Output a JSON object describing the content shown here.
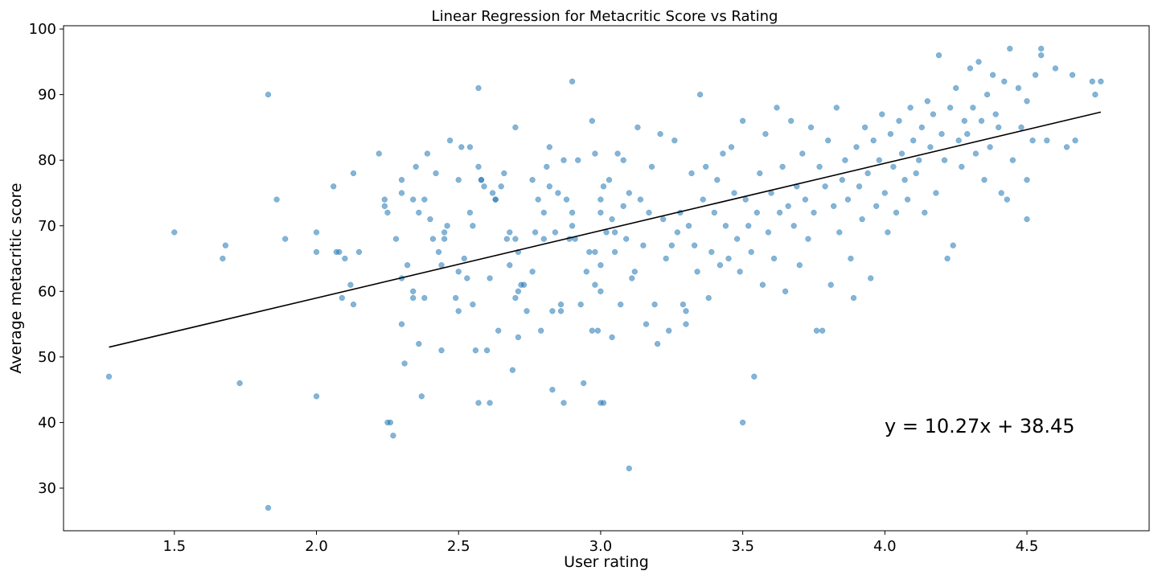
{
  "chart_data": {
    "type": "scatter",
    "title": "Linear Regression for Metacritic Score vs Rating",
    "xlabel": "User rating",
    "ylabel": "Average metacritic score",
    "xlim": [
      1.11,
      4.93
    ],
    "ylim": [
      23.5,
      100.5
    ],
    "xticks": [
      1.5,
      2.0,
      2.5,
      3.0,
      3.5,
      4.0,
      4.5
    ],
    "xtick_labels": [
      "1.5",
      "2.0",
      "2.5",
      "3.0",
      "3.5",
      "4.0",
      "4.5"
    ],
    "yticks": [
      30,
      40,
      50,
      60,
      70,
      80,
      90,
      100
    ],
    "ytick_labels": [
      "30",
      "40",
      "50",
      "60",
      "70",
      "80",
      "90",
      "100"
    ],
    "grid": false,
    "color": "#1f77b4",
    "regression": {
      "slope": 10.27,
      "intercept": 38.45,
      "x_range": [
        1.27,
        4.76
      ],
      "color": "#000000",
      "equation_label": "y = 10.27x + 38.45"
    },
    "points": [
      [
        1.27,
        47
      ],
      [
        1.5,
        69
      ],
      [
        1.67,
        65
      ],
      [
        1.68,
        67
      ],
      [
        1.73,
        46
      ],
      [
        1.83,
        90
      ],
      [
        1.83,
        27
      ],
      [
        1.86,
        74
      ],
      [
        1.89,
        68
      ],
      [
        2.0,
        69
      ],
      [
        2.0,
        66
      ],
      [
        2.0,
        44
      ],
      [
        2.06,
        76
      ],
      [
        2.07,
        66
      ],
      [
        2.08,
        66
      ],
      [
        2.09,
        59
      ],
      [
        2.1,
        65
      ],
      [
        2.12,
        61
      ],
      [
        2.13,
        58
      ],
      [
        2.13,
        78
      ],
      [
        2.15,
        66
      ],
      [
        2.22,
        81
      ],
      [
        2.24,
        74
      ],
      [
        2.24,
        73
      ],
      [
        2.25,
        72
      ],
      [
        2.25,
        40
      ],
      [
        2.26,
        40
      ],
      [
        2.27,
        38
      ],
      [
        2.28,
        68
      ],
      [
        2.3,
        77
      ],
      [
        2.3,
        75
      ],
      [
        2.3,
        62
      ],
      [
        2.3,
        55
      ],
      [
        2.31,
        49
      ],
      [
        2.32,
        64
      ],
      [
        2.34,
        74
      ],
      [
        2.34,
        59
      ],
      [
        2.34,
        60
      ],
      [
        2.35,
        79
      ],
      [
        2.36,
        72
      ],
      [
        2.36,
        52
      ],
      [
        2.37,
        44
      ],
      [
        2.38,
        59
      ],
      [
        2.38,
        74
      ],
      [
        2.39,
        81
      ],
      [
        2.4,
        71
      ],
      [
        2.41,
        68
      ],
      [
        2.42,
        78
      ],
      [
        2.43,
        66
      ],
      [
        2.44,
        51
      ],
      [
        2.44,
        64
      ],
      [
        2.45,
        69
      ],
      [
        2.45,
        68
      ],
      [
        2.46,
        70
      ],
      [
        2.47,
        83
      ],
      [
        2.49,
        59
      ],
      [
        2.5,
        77
      ],
      [
        2.5,
        63
      ],
      [
        2.5,
        57
      ],
      [
        2.51,
        82
      ],
      [
        2.52,
        65
      ],
      [
        2.53,
        62
      ],
      [
        2.54,
        72
      ],
      [
        2.54,
        82
      ],
      [
        2.55,
        58
      ],
      [
        2.55,
        70
      ],
      [
        2.56,
        51
      ],
      [
        2.57,
        91
      ],
      [
        2.57,
        79
      ],
      [
        2.57,
        43
      ],
      [
        2.58,
        77
      ],
      [
        2.58,
        77
      ],
      [
        2.59,
        76
      ],
      [
        2.6,
        51
      ],
      [
        2.61,
        62
      ],
      [
        2.61,
        43
      ],
      [
        2.62,
        75
      ],
      [
        2.63,
        74
      ],
      [
        2.63,
        74
      ],
      [
        2.64,
        54
      ],
      [
        2.65,
        76
      ],
      [
        2.66,
        78
      ],
      [
        2.67,
        68
      ],
      [
        2.68,
        64
      ],
      [
        2.68,
        69
      ],
      [
        2.69,
        48
      ],
      [
        2.7,
        59
      ],
      [
        2.7,
        85
      ],
      [
        2.7,
        68
      ],
      [
        2.71,
        66
      ],
      [
        2.71,
        60
      ],
      [
        2.71,
        53
      ],
      [
        2.72,
        61
      ],
      [
        2.73,
        61
      ],
      [
        2.74,
        57
      ],
      [
        2.76,
        63
      ],
      [
        2.76,
        77
      ],
      [
        2.77,
        69
      ],
      [
        2.78,
        74
      ],
      [
        2.79,
        54
      ],
      [
        2.8,
        68
      ],
      [
        2.8,
        72
      ],
      [
        2.81,
        79
      ],
      [
        2.82,
        76
      ],
      [
        2.82,
        82
      ],
      [
        2.83,
        57
      ],
      [
        2.83,
        45
      ],
      [
        2.84,
        69
      ],
      [
        2.85,
        75
      ],
      [
        2.86,
        57
      ],
      [
        2.86,
        58
      ],
      [
        2.87,
        43
      ],
      [
        2.87,
        80
      ],
      [
        2.88,
        74
      ],
      [
        2.89,
        68
      ],
      [
        2.9,
        92
      ],
      [
        2.9,
        72
      ],
      [
        2.9,
        70
      ],
      [
        2.91,
        68
      ],
      [
        2.92,
        80
      ],
      [
        2.93,
        58
      ],
      [
        2.94,
        46
      ],
      [
        2.95,
        63
      ],
      [
        2.96,
        66
      ],
      [
        2.97,
        86
      ],
      [
        2.97,
        54
      ],
      [
        2.98,
        66
      ],
      [
        2.98,
        81
      ],
      [
        2.98,
        61
      ],
      [
        2.99,
        54
      ],
      [
        3.0,
        43
      ],
      [
        3.0,
        60
      ],
      [
        3.0,
        64
      ],
      [
        3.0,
        72
      ],
      [
        3.0,
        74
      ],
      [
        3.01,
        43
      ],
      [
        3.01,
        76
      ],
      [
        3.02,
        69
      ],
      [
        3.03,
        77
      ],
      [
        3.04,
        53
      ],
      [
        3.04,
        71
      ],
      [
        3.05,
        69
      ],
      [
        3.05,
        66
      ],
      [
        3.06,
        81
      ],
      [
        3.07,
        58
      ],
      [
        3.08,
        80
      ],
      [
        3.08,
        73
      ],
      [
        3.09,
        68
      ],
      [
        3.1,
        33
      ],
      [
        3.1,
        75
      ],
      [
        3.11,
        62
      ],
      [
        3.12,
        63
      ],
      [
        3.13,
        85
      ],
      [
        3.14,
        74
      ],
      [
        3.15,
        67
      ],
      [
        3.16,
        55
      ],
      [
        3.17,
        72
      ],
      [
        3.18,
        79
      ],
      [
        3.19,
        58
      ],
      [
        3.2,
        52
      ],
      [
        3.21,
        84
      ],
      [
        3.22,
        71
      ],
      [
        3.23,
        65
      ],
      [
        3.24,
        54
      ],
      [
        3.25,
        67
      ],
      [
        3.26,
        83
      ],
      [
        3.27,
        69
      ],
      [
        3.28,
        72
      ],
      [
        3.29,
        58
      ],
      [
        3.3,
        57
      ],
      [
        3.3,
        55
      ],
      [
        3.31,
        70
      ],
      [
        3.32,
        78
      ],
      [
        3.33,
        67
      ],
      [
        3.34,
        63
      ],
      [
        3.35,
        90
      ],
      [
        3.36,
        74
      ],
      [
        3.37,
        79
      ],
      [
        3.38,
        59
      ],
      [
        3.39,
        66
      ],
      [
        3.4,
        72
      ],
      [
        3.41,
        77
      ],
      [
        3.42,
        64
      ],
      [
        3.43,
        81
      ],
      [
        3.44,
        70
      ],
      [
        3.45,
        65
      ],
      [
        3.46,
        82
      ],
      [
        3.47,
        75
      ],
      [
        3.48,
        68
      ],
      [
        3.49,
        63
      ],
      [
        3.5,
        40
      ],
      [
        3.5,
        86
      ],
      [
        3.51,
        74
      ],
      [
        3.52,
        70
      ],
      [
        3.53,
        66
      ],
      [
        3.54,
        47
      ],
      [
        3.55,
        72
      ],
      [
        3.56,
        78
      ],
      [
        3.57,
        61
      ],
      [
        3.58,
        84
      ],
      [
        3.59,
        69
      ],
      [
        3.6,
        75
      ],
      [
        3.61,
        65
      ],
      [
        3.62,
        88
      ],
      [
        3.63,
        72
      ],
      [
        3.64,
        79
      ],
      [
        3.65,
        60
      ],
      [
        3.66,
        73
      ],
      [
        3.67,
        86
      ],
      [
        3.68,
        70
      ],
      [
        3.69,
        76
      ],
      [
        3.7,
        64
      ],
      [
        3.71,
        81
      ],
      [
        3.72,
        74
      ],
      [
        3.73,
        68
      ],
      [
        3.74,
        85
      ],
      [
        3.75,
        72
      ],
      [
        3.76,
        54
      ],
      [
        3.77,
        79
      ],
      [
        3.78,
        54
      ],
      [
        3.79,
        76
      ],
      [
        3.8,
        83
      ],
      [
        3.81,
        61
      ],
      [
        3.82,
        73
      ],
      [
        3.83,
        88
      ],
      [
        3.84,
        69
      ],
      [
        3.85,
        77
      ],
      [
        3.86,
        80
      ],
      [
        3.87,
        74
      ],
      [
        3.88,
        65
      ],
      [
        3.89,
        59
      ],
      [
        3.9,
        82
      ],
      [
        3.91,
        76
      ],
      [
        3.92,
        71
      ],
      [
        3.93,
        85
      ],
      [
        3.94,
        78
      ],
      [
        3.95,
        62
      ],
      [
        3.96,
        83
      ],
      [
        3.97,
        73
      ],
      [
        3.98,
        80
      ],
      [
        3.99,
        87
      ],
      [
        4.0,
        75
      ],
      [
        4.01,
        69
      ],
      [
        4.02,
        84
      ],
      [
        4.03,
        79
      ],
      [
        4.04,
        72
      ],
      [
        4.05,
        86
      ],
      [
        4.06,
        81
      ],
      [
        4.07,
        77
      ],
      [
        4.08,
        74
      ],
      [
        4.09,
        88
      ],
      [
        4.1,
        83
      ],
      [
        4.11,
        78
      ],
      [
        4.12,
        80
      ],
      [
        4.13,
        85
      ],
      [
        4.14,
        72
      ],
      [
        4.15,
        89
      ],
      [
        4.16,
        82
      ],
      [
        4.17,
        87
      ],
      [
        4.18,
        75
      ],
      [
        4.19,
        96
      ],
      [
        4.2,
        84
      ],
      [
        4.21,
        80
      ],
      [
        4.22,
        65
      ],
      [
        4.23,
        88
      ],
      [
        4.24,
        67
      ],
      [
        4.25,
        91
      ],
      [
        4.26,
        83
      ],
      [
        4.27,
        79
      ],
      [
        4.28,
        86
      ],
      [
        4.29,
        84
      ],
      [
        4.3,
        94
      ],
      [
        4.31,
        88
      ],
      [
        4.32,
        81
      ],
      [
        4.33,
        95
      ],
      [
        4.34,
        86
      ],
      [
        4.35,
        77
      ],
      [
        4.36,
        90
      ],
      [
        4.37,
        82
      ],
      [
        4.38,
        93
      ],
      [
        4.39,
        87
      ],
      [
        4.4,
        85
      ],
      [
        4.41,
        75
      ],
      [
        4.42,
        92
      ],
      [
        4.43,
        74
      ],
      [
        4.44,
        97
      ],
      [
        4.45,
        80
      ],
      [
        4.47,
        91
      ],
      [
        4.48,
        85
      ],
      [
        4.5,
        89
      ],
      [
        4.5,
        77
      ],
      [
        4.5,
        71
      ],
      [
        4.52,
        83
      ],
      [
        4.53,
        93
      ],
      [
        4.55,
        96
      ],
      [
        4.55,
        97
      ],
      [
        4.57,
        83
      ],
      [
        4.6,
        94
      ],
      [
        4.64,
        82
      ],
      [
        4.66,
        93
      ],
      [
        4.67,
        83
      ],
      [
        4.73,
        92
      ],
      [
        4.74,
        90
      ],
      [
        4.76,
        92
      ]
    ]
  }
}
